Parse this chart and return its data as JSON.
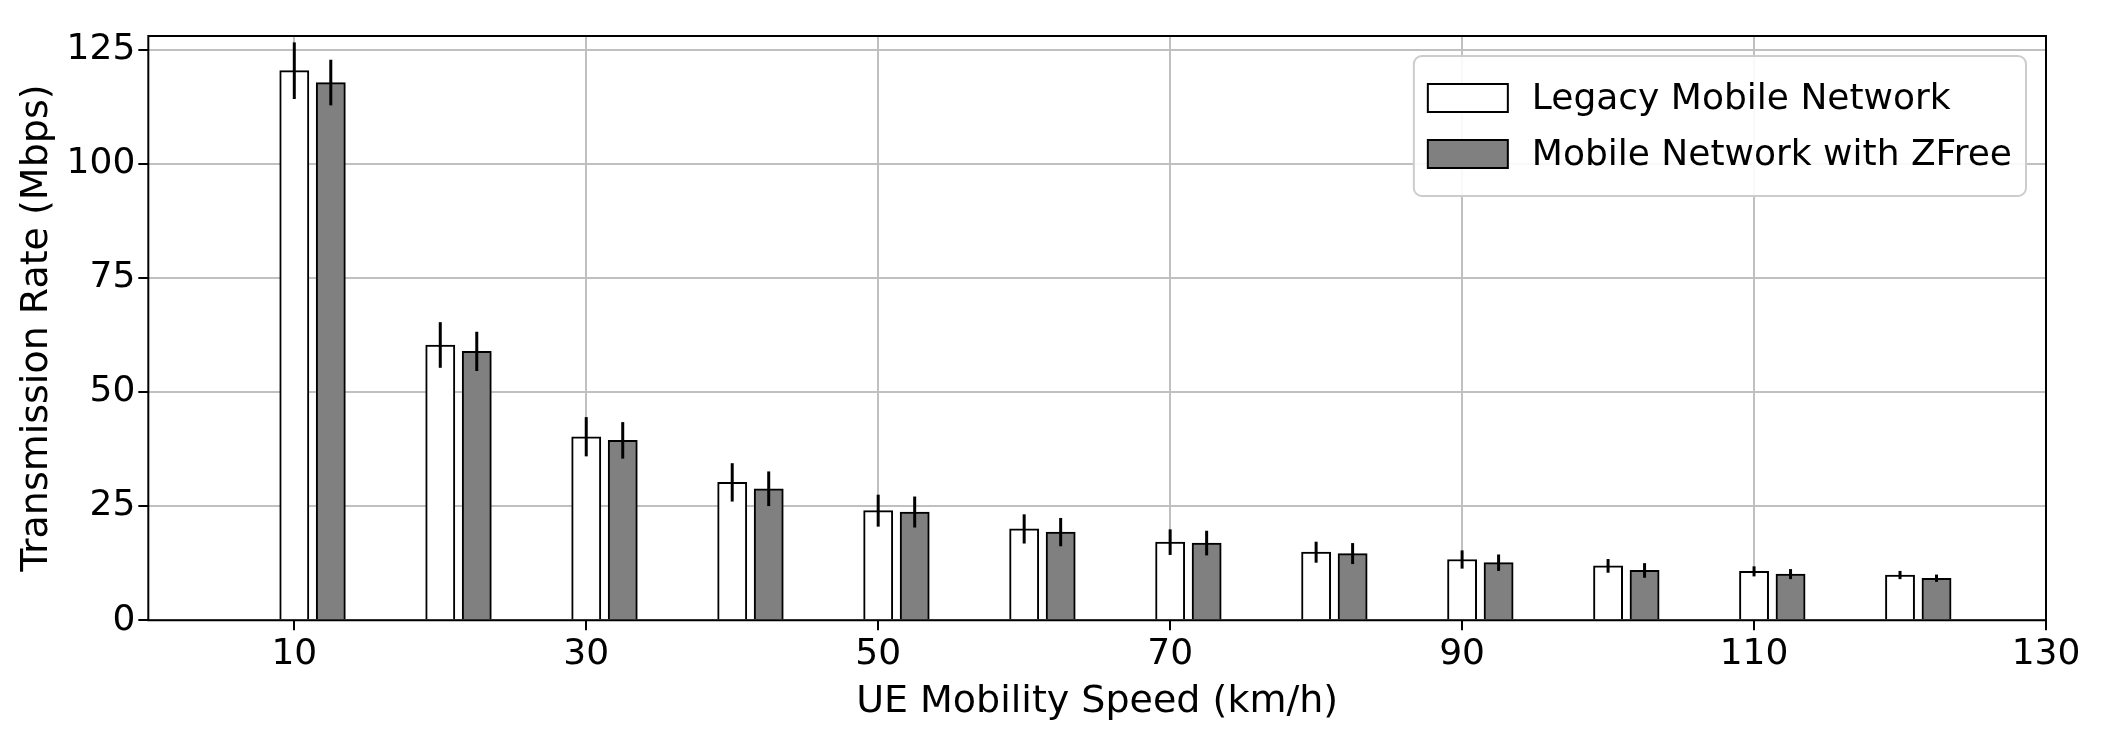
{
  "chart_data": {
    "type": "bar",
    "xlabel": "UE Mobility Speed (km/h)",
    "ylabel": "Transmission Rate (Mbps)",
    "xlim": [
      0,
      130
    ],
    "xticks": [
      10,
      30,
      50,
      70,
      90,
      110,
      130
    ],
    "ylim": [
      0,
      128
    ],
    "yticks": [
      0,
      25,
      50,
      75,
      100,
      125
    ],
    "grid": true,
    "legend": "top right",
    "series": [
      {
        "name": "Legacy Mobile Network",
        "color": "#ffffff",
        "x": [
          10,
          20,
          30,
          40,
          50,
          60,
          70,
          80,
          90,
          100,
          110,
          120
        ],
        "values": [
          120.4,
          60.3,
          40.2,
          30.2,
          24.0,
          20.0,
          17.1,
          14.9,
          13.3,
          11.9,
          10.7,
          9.9
        ],
        "errors": [
          6.2,
          5,
          4.3,
          4.2,
          3.5,
          3.2,
          2.8,
          2.3,
          2,
          1.5,
          1.1,
          0.9
        ]
      },
      {
        "name": "Mobile Network with ZFree",
        "color": "#808080",
        "x": [
          12.5,
          22.5,
          32.5,
          42.5,
          52.5,
          62.5,
          72.5,
          82.5,
          92.5,
          102.5,
          112.5,
          122.5
        ],
        "values": [
          117.8,
          58.9,
          39.4,
          28.8,
          23.7,
          19.3,
          16.9,
          14.6,
          12.6,
          10.9,
          10.1,
          9.2
        ],
        "errors": [
          5,
          4.3,
          4,
          3.8,
          3.4,
          3.1,
          2.7,
          2.3,
          1.8,
          1.6,
          1.1,
          0.8
        ]
      }
    ]
  }
}
